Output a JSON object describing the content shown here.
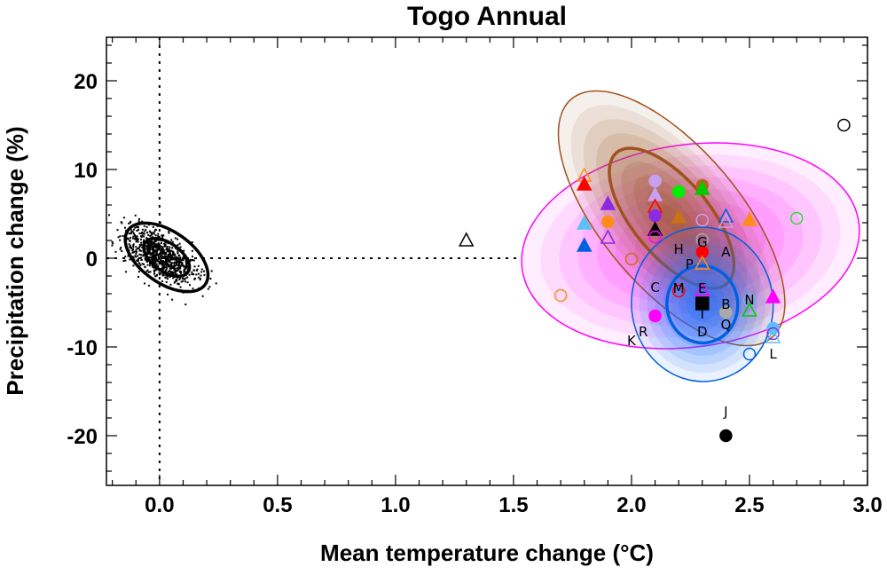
{
  "chart_data": {
    "type": "scatter",
    "title": "Togo Annual",
    "xlabel": "Mean temperature change (°C)",
    "ylabel": "Precipitation change (%)",
    "xlim": [
      -0.225,
      3.0
    ],
    "ylim": [
      -25.6,
      24.9
    ],
    "xticks": [
      "0.0",
      "0.5",
      "1.0",
      "1.5",
      "2.0",
      "2.5",
      "3.0"
    ],
    "xtick_values": [
      0.0,
      0.5,
      1.0,
      1.5,
      2.0,
      2.5,
      3.0
    ],
    "yticks": [
      "20",
      "10",
      "0",
      "-10",
      "-20"
    ],
    "ytick_values": [
      20,
      10,
      0,
      -10,
      -20
    ],
    "grid": false,
    "reference_lines": {
      "x": 0,
      "y": 0,
      "y_line_x_end": 1.52,
      "style": "dotted"
    },
    "control_cloud": {
      "center": [
        0.0,
        0.3
      ],
      "n": 900,
      "x_sd": 0.075,
      "y_sd": 1.6,
      "correlation": -0.6,
      "color": "#000000"
    },
    "ellipses": [
      {
        "name": "control",
        "center": [
          0.03,
          0.1
        ],
        "rx_data": 0.2,
        "ry_data": 2.9,
        "angle_deg": 35,
        "inner_scale": 0.55,
        "color": "#000000",
        "shaded": false
      },
      {
        "name": "pink",
        "center": [
          2.25,
          1.4
        ],
        "rx_data": 0.72,
        "ry_data": 11.4,
        "angle_deg": -8,
        "inner_scale": 0,
        "color": "#ff00ff",
        "fill": "#ff40ff",
        "shaded": true
      },
      {
        "name": "brown",
        "center": [
          2.17,
          4.5
        ],
        "rx_data": 0.66,
        "ry_data": 7.8,
        "angle_deg": 50,
        "inner_scale": 0.55,
        "color": "#a0521d",
        "fill": "#9a5a2a",
        "shaded": true
      },
      {
        "name": "blue",
        "center": [
          2.3,
          -5.2
        ],
        "rx_data": 0.3,
        "ry_data": 8.7,
        "angle_deg": -5,
        "inner_scale": 0.5,
        "color": "#0060e0",
        "fill": "#1a70ff",
        "shaded": true
      }
    ],
    "points": [
      {
        "x": 2.9,
        "y": 15.0,
        "shape": "circle",
        "filled": false,
        "color": "#000000"
      },
      {
        "x": 1.3,
        "y": 2.0,
        "shape": "triangle",
        "filled": false,
        "color": "#000000"
      },
      {
        "x": 2.4,
        "y": -20.0,
        "shape": "circle",
        "filled": true,
        "color": "#000000"
      },
      {
        "x": 1.7,
        "y": -4.2,
        "shape": "circle",
        "filled": false,
        "color": "#ff8c1a"
      },
      {
        "x": 2.7,
        "y": 4.5,
        "shape": "circle",
        "filled": false,
        "color": "#33dd33"
      },
      {
        "x": 1.8,
        "y": 9.3,
        "shape": "triangle",
        "filled": false,
        "color": "#ff8c1a"
      },
      {
        "x": 1.8,
        "y": 8.3,
        "shape": "triangle",
        "filled": true,
        "color": "#ff0000"
      },
      {
        "x": 1.9,
        "y": 6.1,
        "shape": "triangle",
        "filled": true,
        "color": "#8a2be2"
      },
      {
        "x": 1.8,
        "y": 3.9,
        "shape": "triangle",
        "filled": true,
        "color": "#5bc0f5"
      },
      {
        "x": 1.9,
        "y": 4.1,
        "shape": "circle",
        "filled": true,
        "color": "#ff8c1a"
      },
      {
        "x": 1.9,
        "y": 2.3,
        "shape": "triangle",
        "filled": false,
        "color": "#8a2be2"
      },
      {
        "x": 1.8,
        "y": 1.4,
        "shape": "triangle",
        "filled": true,
        "color": "#0060e0"
      },
      {
        "x": 2.0,
        "y": -0.1,
        "shape": "circle",
        "filled": false,
        "color": "#d06a1a"
      },
      {
        "x": 2.1,
        "y": 8.7,
        "shape": "circle",
        "filled": true,
        "color": "#c8a0f0"
      },
      {
        "x": 2.1,
        "y": 7.1,
        "shape": "triangle",
        "filled": true,
        "color": "#c8a0f0"
      },
      {
        "x": 2.1,
        "y": 5.8,
        "shape": "triangle",
        "filled": false,
        "color": "#ff0000"
      },
      {
        "x": 2.1,
        "y": 4.8,
        "shape": "circle",
        "filled": true,
        "color": "#8a2be2"
      },
      {
        "x": 2.1,
        "y": 3.2,
        "shape": "triangle",
        "filled": true,
        "color": "#000000"
      },
      {
        "x": 2.1,
        "y": 2.4,
        "shape": "circle",
        "filled": false,
        "color": "#ff00ff"
      },
      {
        "x": 2.2,
        "y": 4.6,
        "shape": "triangle",
        "filled": true,
        "color": "#c8701a"
      },
      {
        "x": 2.2,
        "y": 7.5,
        "shape": "circle",
        "filled": true,
        "color": "#00ee00"
      },
      {
        "x": 2.3,
        "y": 8.2,
        "shape": "circle",
        "filled": true,
        "color": "#b5651d"
      },
      {
        "x": 2.3,
        "y": 7.8,
        "shape": "triangle",
        "filled": true,
        "color": "#00cc00"
      },
      {
        "x": 2.3,
        "y": 4.3,
        "shape": "circle",
        "filled": false,
        "color": "#c8a0f0"
      },
      {
        "x": 2.3,
        "y": 2.1,
        "shape": "circle",
        "filled": false,
        "color": "#aaaaaa"
      },
      {
        "x": 2.3,
        "y": 0.7,
        "shape": "circle",
        "filled": true,
        "color": "#ff0000"
      },
      {
        "x": 2.3,
        "y": -0.6,
        "shape": "triangle",
        "filled": false,
        "color": "#ff8c1a"
      },
      {
        "x": 2.4,
        "y": 4.7,
        "shape": "triangle",
        "filled": false,
        "color": "#0060e0"
      },
      {
        "x": 2.4,
        "y": 4.1,
        "shape": "triangle",
        "filled": false,
        "color": "#c8a0f0"
      },
      {
        "x": 2.5,
        "y": 4.3,
        "shape": "triangle",
        "filled": true,
        "color": "#ff8c1a"
      },
      {
        "x": 2.1,
        "y": -6.5,
        "shape": "circle",
        "filled": true,
        "color": "#ff00ff"
      },
      {
        "x": 2.2,
        "y": -3.7,
        "shape": "circle",
        "filled": false,
        "color": "#ff0000"
      },
      {
        "x": 2.3,
        "y": -3.6,
        "shape": "triangle",
        "filled": false,
        "color": "#ff00ff"
      },
      {
        "x": 2.3,
        "y": -5.1,
        "shape": "square",
        "filled": true,
        "color": "#000000"
      },
      {
        "x": 2.4,
        "y": -6.1,
        "shape": "circle",
        "filled": true,
        "color": "#aaaaaa"
      },
      {
        "x": 2.5,
        "y": -4.7,
        "shape": "circle",
        "filled": false,
        "color": "#5bc0f5"
      },
      {
        "x": 2.5,
        "y": -5.9,
        "shape": "triangle",
        "filled": false,
        "color": "#00cc00"
      },
      {
        "x": 2.6,
        "y": -4.4,
        "shape": "triangle",
        "filled": true,
        "color": "#ff00ff"
      },
      {
        "x": 2.6,
        "y": -7.9,
        "shape": "circle",
        "filled": true,
        "color": "#5bc0f5"
      },
      {
        "x": 2.6,
        "y": -8.5,
        "shape": "circle",
        "filled": false,
        "color": "#8a2be2"
      },
      {
        "x": 2.6,
        "y": -8.9,
        "shape": "triangle",
        "filled": false,
        "color": "#5bc0f5"
      },
      {
        "x": 2.5,
        "y": -10.8,
        "shape": "circle",
        "filled": false,
        "color": "#0060e0"
      }
    ],
    "labels": [
      {
        "text": "A",
        "x": 2.4,
        "y": 0.8
      },
      {
        "text": "B",
        "x": 2.4,
        "y": -5.1
      },
      {
        "text": "C",
        "x": 2.1,
        "y": -3.2
      },
      {
        "text": "D",
        "x": 2.3,
        "y": -8.2
      },
      {
        "text": "E",
        "x": 2.3,
        "y": -3.3
      },
      {
        "text": "G",
        "x": 2.3,
        "y": 1.9
      },
      {
        "text": "H",
        "x": 2.2,
        "y": 1.1
      },
      {
        "text": "I",
        "x": 2.3,
        "y": -6.2
      },
      {
        "text": "J",
        "x": 2.4,
        "y": -17.2
      },
      {
        "text": "K",
        "x": 2.0,
        "y": -9.2
      },
      {
        "text": "L",
        "x": 2.6,
        "y": -10.7
      },
      {
        "text": "M",
        "x": 2.2,
        "y": -3.3
      },
      {
        "text": "N",
        "x": 2.5,
        "y": -4.6
      },
      {
        "text": "P",
        "x": 2.2,
        "y": -0.6
      },
      {
        "text": "Q",
        "x": 2.4,
        "y": -7.4
      },
      {
        "text": "R",
        "x": 2.0,
        "y": -8.2
      }
    ]
  }
}
